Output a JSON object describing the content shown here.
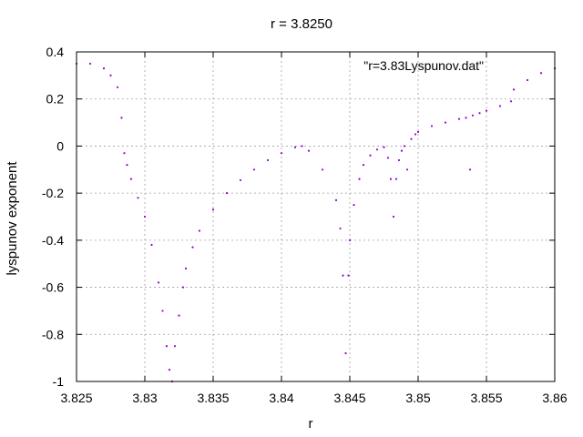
{
  "chart_data": {
    "type": "scatter",
    "title": "r = 3.8250",
    "xlabel": "r",
    "ylabel": "lyspunov exponent",
    "legend": "\"r=3.83Lyspunov.dat\"",
    "legend_position": "top-right",
    "xlim": [
      3.825,
      3.86
    ],
    "ylim": [
      -1,
      0.4
    ],
    "grid": true,
    "xticks": [
      "3.825",
      "3.83",
      "3.835",
      "3.84",
      "3.845",
      "3.85",
      "3.855",
      "3.86"
    ],
    "yticks": [
      "0.4",
      "0.2",
      "0",
      "-0.2",
      "-0.4",
      "-0.6",
      "-0.8",
      "-1"
    ],
    "xtick_values": [
      3.825,
      3.83,
      3.835,
      3.84,
      3.845,
      3.85,
      3.855,
      3.86
    ],
    "ytick_values": [
      0.4,
      0.2,
      0,
      -0.2,
      -0.4,
      -0.6,
      -0.8,
      -1
    ],
    "series_color": "#9400d3",
    "series": [
      {
        "x": [
          3.825,
          3.826,
          3.827,
          3.8275,
          3.828,
          3.8283,
          3.8285,
          3.8287,
          3.829,
          3.8295,
          3.83,
          3.8305,
          3.831,
          3.8313,
          3.8316,
          3.8318,
          3.832,
          3.8322,
          3.8325,
          3.8328,
          3.833,
          3.8335,
          3.834,
          3.835,
          3.836,
          3.837,
          3.838,
          3.839,
          3.84,
          3.841,
          3.8415,
          3.842,
          3.843,
          3.844,
          3.8443,
          3.8445,
          3.8447,
          3.8449,
          3.845,
          3.8453,
          3.8457,
          3.846,
          3.8465,
          3.847,
          3.8475,
          3.8478,
          3.848,
          3.8482,
          3.8484,
          3.8486,
          3.8488,
          3.849,
          3.8492,
          3.8495,
          3.8498,
          3.85,
          3.851,
          3.852,
          3.853,
          3.8535,
          3.8538,
          3.854,
          3.8545,
          3.855,
          3.856,
          3.8568,
          3.857,
          3.858,
          3.859,
          3.86
        ],
        "y": [
          0.35,
          0.35,
          0.33,
          0.3,
          0.25,
          0.12,
          -0.03,
          -0.08,
          -0.14,
          -0.22,
          -0.3,
          -0.42,
          -0.58,
          -0.7,
          -0.85,
          -0.95,
          -1.0,
          -0.85,
          -0.72,
          -0.6,
          -0.52,
          -0.43,
          -0.36,
          -0.27,
          -0.2,
          -0.145,
          -0.1,
          -0.06,
          -0.03,
          -0.005,
          0.0,
          -0.02,
          -0.1,
          -0.23,
          -0.35,
          -0.55,
          -0.88,
          -0.55,
          -0.4,
          -0.25,
          -0.14,
          -0.08,
          -0.04,
          -0.015,
          -0.005,
          -0.05,
          -0.14,
          -0.3,
          -0.14,
          -0.06,
          -0.02,
          0.0,
          -0.1,
          0.03,
          0.05,
          0.06,
          0.085,
          0.1,
          0.115,
          0.12,
          -0.1,
          0.13,
          0.14,
          0.15,
          0.17,
          0.19,
          0.24,
          0.28,
          0.31,
          0.33
        ]
      }
    ]
  }
}
